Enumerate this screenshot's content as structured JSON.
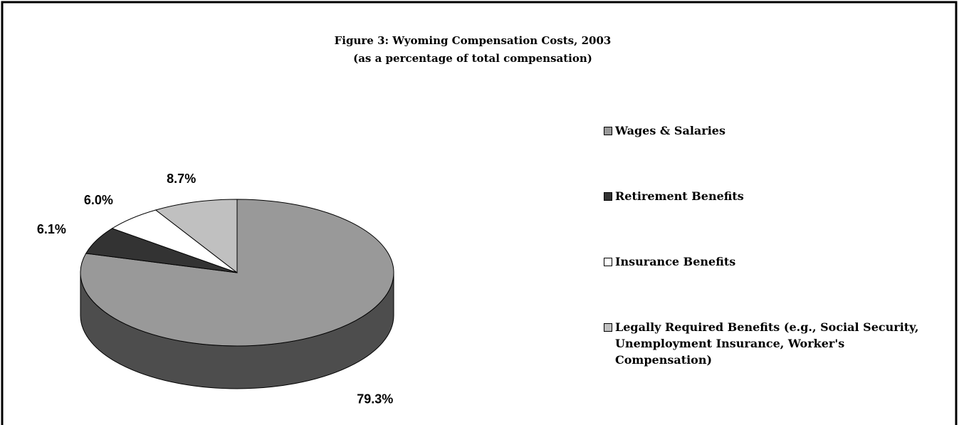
{
  "chart_data": {
    "type": "pie",
    "title": "Figure 3: Wyoming Compensation Costs, 2003",
    "subtitle": "(as a percentage of total compensation)",
    "categories": [
      "Wages & Salaries",
      "Retirement Benefits",
      "Insurance Benefits",
      "Legally Required Benefits (e.g., Social Security, Unemployment Insurance, Worker's Compensation)"
    ],
    "values": [
      79.3,
      6.1,
      6.0,
      8.7
    ],
    "value_labels": [
      "79.3%",
      "6.1%",
      "6.0%",
      "8.7%"
    ],
    "colors": [
      "#999999",
      "#333333",
      "#ffffff",
      "#c0c0c0"
    ],
    "legend": "right"
  }
}
